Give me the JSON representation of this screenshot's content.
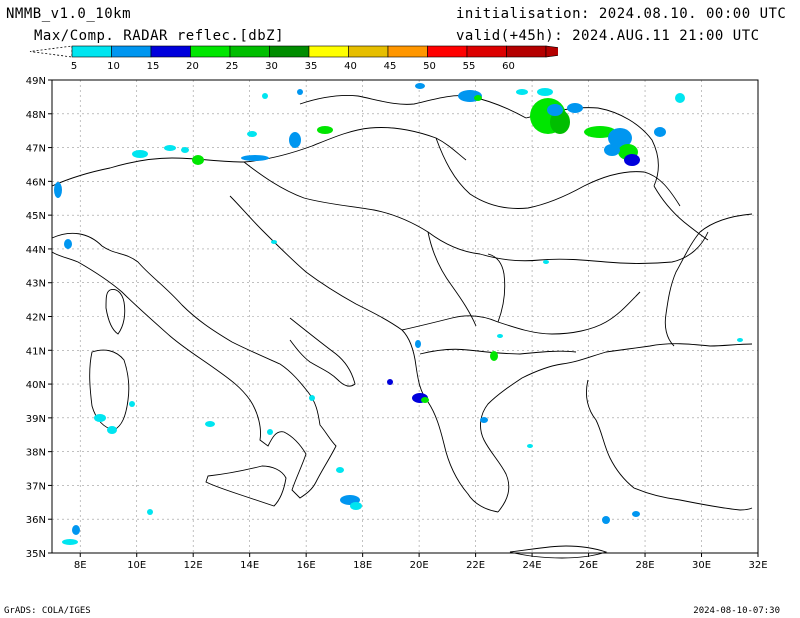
{
  "header": {
    "model": "NMMB_v1.0_10km",
    "field": "Max/Comp. RADAR reflec.[dbZ]",
    "init": "initialisation: 2024.08.10. 00:00 UTC",
    "valid": "valid(+45h): 2024.AUG.11 21:00 UTC"
  },
  "colorbar": {
    "labels": [
      "5",
      "10",
      "15",
      "20",
      "25",
      "30",
      "35",
      "40",
      "45",
      "50",
      "55",
      "60"
    ],
    "colors": [
      "#00e5f0",
      "#0096f0",
      "#0000dc",
      "#00e600",
      "#00be00",
      "#008c00",
      "#ffff00",
      "#e6be00",
      "#ff9600",
      "#ff0000",
      "#dc0000",
      "#b40000"
    ]
  },
  "map": {
    "lon_labels": [
      "8E",
      "10E",
      "12E",
      "14E",
      "16E",
      "18E",
      "20E",
      "22E",
      "24E",
      "26E",
      "28E",
      "30E",
      "32E"
    ],
    "lat_labels": [
      "35N",
      "36N",
      "37N",
      "38N",
      "39N",
      "40N",
      "41N",
      "42N",
      "43N",
      "44N",
      "45N",
      "46N",
      "47N",
      "48N",
      "49N"
    ],
    "lon_range": [
      7,
      32
    ],
    "lat_range": [
      35,
      49
    ],
    "grid": true
  },
  "footer": {
    "left": "GrADS: COLA/IGES",
    "right": "2024-08-10-07:30"
  }
}
